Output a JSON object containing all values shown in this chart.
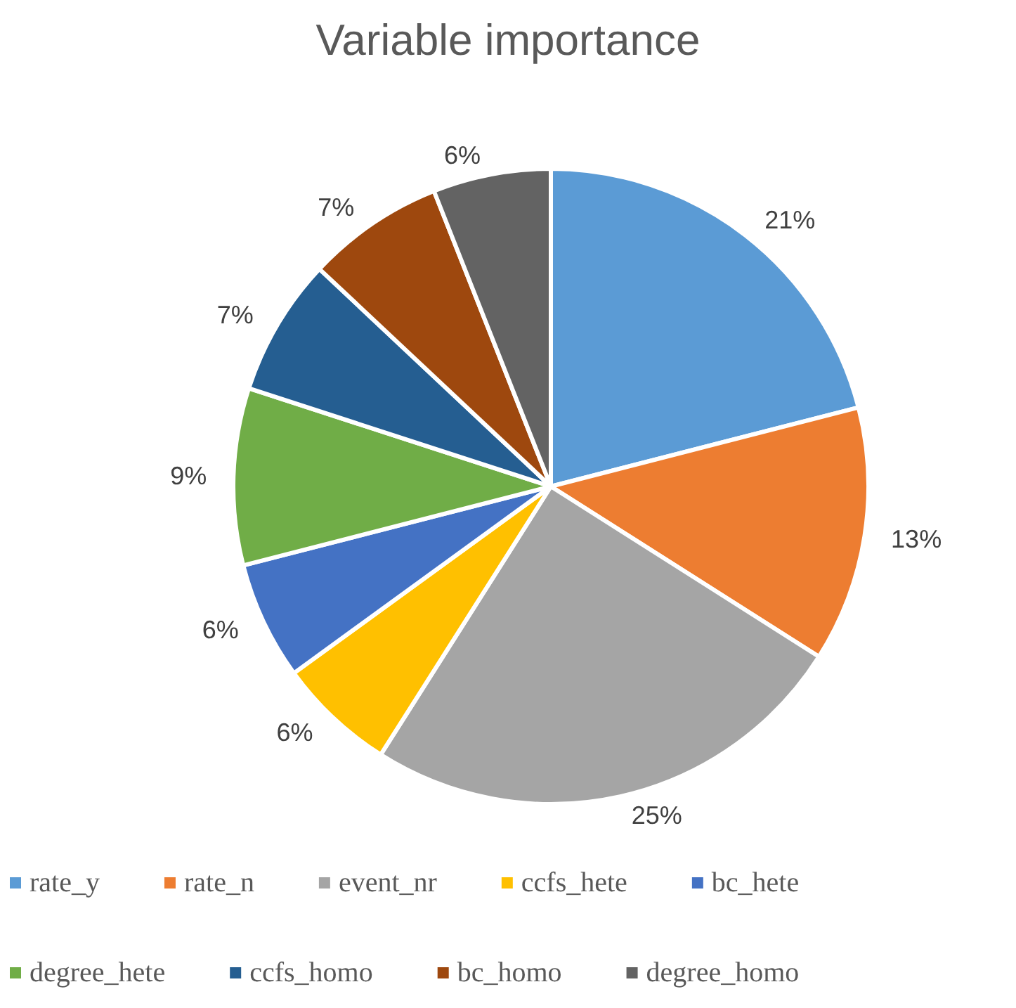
{
  "chart_data": {
    "type": "pie",
    "title": "Variable importance",
    "categories": [
      "rate_y",
      "rate_n",
      "event_nr",
      "ccfs_hete",
      "bc_hete",
      "degree_hete",
      "ccfs_homo",
      "bc_homo",
      "degree_homo"
    ],
    "values": [
      21,
      13,
      25,
      6,
      6,
      9,
      7,
      7,
      6
    ],
    "colors": [
      "#5b9bd5",
      "#ed7d31",
      "#a5a5a5",
      "#ffc000",
      "#4472c4",
      "#70ad47",
      "#255e91",
      "#9e480e",
      "#636363"
    ],
    "value_labels": [
      "21%",
      "13%",
      "25%",
      "6%",
      "6%",
      "9%",
      "7%",
      "7%",
      "6%"
    ],
    "legend": "bottom"
  }
}
